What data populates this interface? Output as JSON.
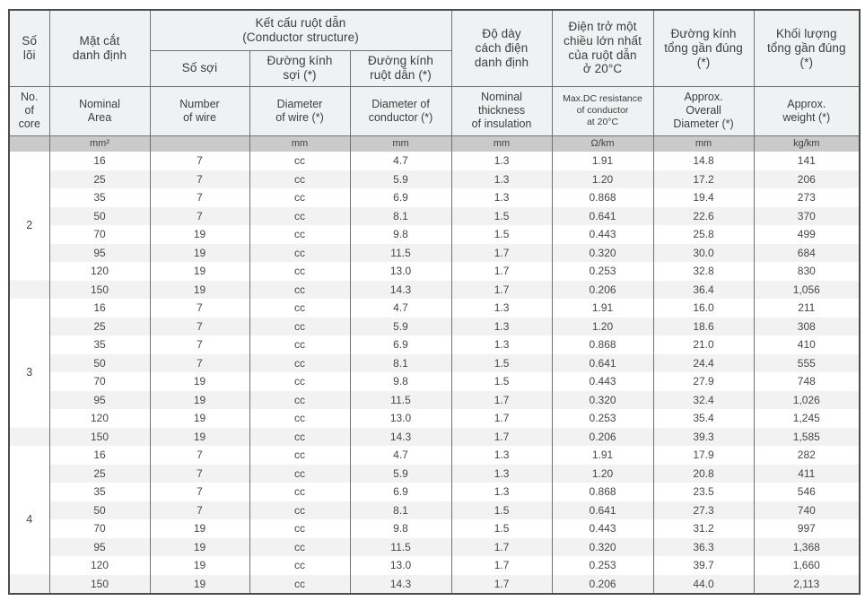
{
  "colors": {
    "header_bg": "#f0f1f2",
    "units_bg": "#cacaca",
    "stripe_bg": "#f2f2f2",
    "inner_border": "#717171",
    "outer_border": "#4c4c4c",
    "text": "#474747"
  },
  "table": {
    "header": {
      "core_vn": "Số\nlõi",
      "core_en": "No.\nof\ncore",
      "area_vn": "Mặt cắt\ndanh định",
      "area_en": "Nominal\nArea",
      "conductor_structure_vn": "Kết cấu ruột dẫn\n(Conductor structure)",
      "wires_vn": "Số sợi",
      "wires_en": "Number\nof wire",
      "wire_dia_vn": "Đường kính\nsợi (*)",
      "wire_dia_en": "Diameter\nof wire (*)",
      "cond_dia_vn": "Đường kính\nruột dẫn (*)",
      "cond_dia_en": "Diameter of\nconductor (*)",
      "thickness_vn": "Độ dày\ncách điện\ndanh định",
      "thickness_en": "Nominal\nthickness\nof insulation",
      "resistance_vn": "Điện trở một\nchiều lớn nhất\ncủa ruột dẫn\nở 20°C",
      "resistance_en": "Max.DC resistance\nof conductor\nat 20°C",
      "overall_dia_vn": "Đường kính\ntổng gần đúng\n(*)",
      "overall_dia_en": "Approx.\nOverall\nDiameter (*)",
      "weight_vn": "Khối lượng\ntổng gần đúng\n(*)",
      "weight_en": "Approx.\nweight (*)"
    },
    "units": [
      "",
      "mm²",
      "",
      "mm",
      "mm",
      "mm",
      "Ω/km",
      "mm",
      "kg/km"
    ],
    "groups": [
      {
        "core": "2",
        "rows": [
          [
            "16",
            "7",
            "cc",
            "4.7",
            "1.3",
            "1.91",
            "14.8",
            "141"
          ],
          [
            "25",
            "7",
            "cc",
            "5.9",
            "1.3",
            "1.20",
            "17.2",
            "206"
          ],
          [
            "35",
            "7",
            "cc",
            "6.9",
            "1.3",
            "0.868",
            "19.4",
            "273"
          ],
          [
            "50",
            "7",
            "cc",
            "8.1",
            "1.5",
            "0.641",
            "22.6",
            "370"
          ],
          [
            "70",
            "19",
            "cc",
            "9.8",
            "1.5",
            "0.443",
            "25.8",
            "499"
          ],
          [
            "95",
            "19",
            "cc",
            "11.5",
            "1.7",
            "0.320",
            "30.0",
            "684"
          ],
          [
            "120",
            "19",
            "cc",
            "13.0",
            "1.7",
            "0.253",
            "32.8",
            "830"
          ],
          [
            "150",
            "19",
            "cc",
            "14.3",
            "1.7",
            "0.206",
            "36.4",
            "1,056"
          ]
        ]
      },
      {
        "core": "3",
        "rows": [
          [
            "16",
            "7",
            "cc",
            "4.7",
            "1.3",
            "1.91",
            "16.0",
            "211"
          ],
          [
            "25",
            "7",
            "cc",
            "5.9",
            "1.3",
            "1.20",
            "18.6",
            "308"
          ],
          [
            "35",
            "7",
            "cc",
            "6.9",
            "1.3",
            "0.868",
            "21.0",
            "410"
          ],
          [
            "50",
            "7",
            "cc",
            "8.1",
            "1.5",
            "0.641",
            "24.4",
            "555"
          ],
          [
            "70",
            "19",
            "cc",
            "9.8",
            "1.5",
            "0.443",
            "27.9",
            "748"
          ],
          [
            "95",
            "19",
            "cc",
            "11.5",
            "1.7",
            "0.320",
            "32.4",
            "1,026"
          ],
          [
            "120",
            "19",
            "cc",
            "13.0",
            "1.7",
            "0.253",
            "35.4",
            "1,245"
          ],
          [
            "150",
            "19",
            "cc",
            "14.3",
            "1.7",
            "0.206",
            "39.3",
            "1,585"
          ]
        ]
      },
      {
        "core": "4",
        "rows": [
          [
            "16",
            "7",
            "cc",
            "4.7",
            "1.3",
            "1.91",
            "17.9",
            "282"
          ],
          [
            "25",
            "7",
            "cc",
            "5.9",
            "1.3",
            "1.20",
            "20.8",
            "411"
          ],
          [
            "35",
            "7",
            "cc",
            "6.9",
            "1.3",
            "0.868",
            "23.5",
            "546"
          ],
          [
            "50",
            "7",
            "cc",
            "8.1",
            "1.5",
            "0.641",
            "27.3",
            "740"
          ],
          [
            "70",
            "19",
            "cc",
            "9.8",
            "1.5",
            "0.443",
            "31.2",
            "997"
          ],
          [
            "95",
            "19",
            "cc",
            "11.5",
            "1.7",
            "0.320",
            "36.3",
            "1,368"
          ],
          [
            "120",
            "19",
            "cc",
            "13.0",
            "1.7",
            "0.253",
            "39.7",
            "1,660"
          ],
          [
            "150",
            "19",
            "cc",
            "14.3",
            "1.7",
            "0.206",
            "44.0",
            "2,113"
          ]
        ]
      }
    ]
  }
}
